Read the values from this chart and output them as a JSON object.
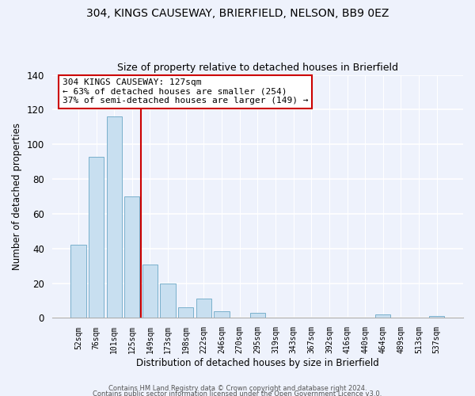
{
  "title1": "304, KINGS CAUSEWAY, BRIERFIELD, NELSON, BB9 0EZ",
  "title2": "Size of property relative to detached houses in Brierfield",
  "xlabel": "Distribution of detached houses by size in Brierfield",
  "ylabel": "Number of detached properties",
  "bar_labels": [
    "52sqm",
    "76sqm",
    "101sqm",
    "125sqm",
    "149sqm",
    "173sqm",
    "198sqm",
    "222sqm",
    "246sqm",
    "270sqm",
    "295sqm",
    "319sqm",
    "343sqm",
    "367sqm",
    "392sqm",
    "416sqm",
    "440sqm",
    "464sqm",
    "489sqm",
    "513sqm",
    "537sqm"
  ],
  "bar_values": [
    42,
    93,
    116,
    70,
    31,
    20,
    6,
    11,
    4,
    0,
    3,
    0,
    0,
    0,
    0,
    0,
    0,
    2,
    0,
    0,
    1
  ],
  "bar_color": "#c8dff0",
  "bar_edge_color": "#7ab0cc",
  "vline_index": 3,
  "vline_color": "#cc0000",
  "annotation_text": "304 KINGS CAUSEWAY: 127sqm\n← 63% of detached houses are smaller (254)\n37% of semi-detached houses are larger (149) →",
  "annotation_box_color": "white",
  "annotation_box_edge": "#cc0000",
  "ylim": [
    0,
    140
  ],
  "yticks": [
    0,
    20,
    40,
    60,
    80,
    100,
    120,
    140
  ],
  "footer1": "Contains HM Land Registry data © Crown copyright and database right 2024.",
  "footer2": "Contains public sector information licensed under the Open Government Licence v3.0.",
  "bg_color": "#eef2fc"
}
